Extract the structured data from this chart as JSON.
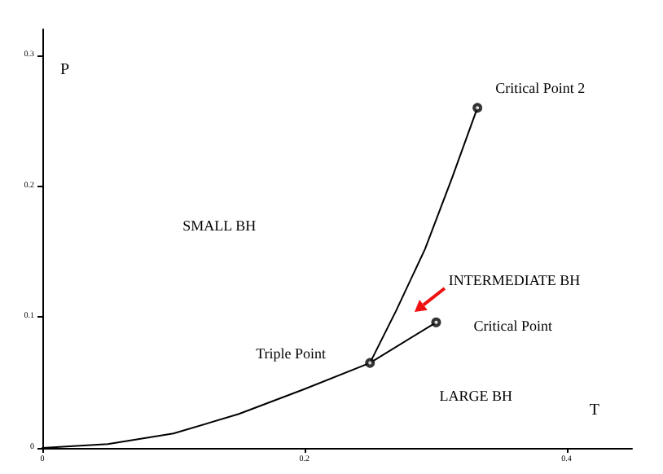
{
  "chart_data": {
    "type": "line",
    "xlabel": "T",
    "ylabel": "P",
    "series": [
      {
        "color": "#000000",
        "x": [
          0,
          0.05,
          0.1,
          0.15,
          0.2,
          0.25
        ],
        "values": [
          0,
          0.003,
          0.011,
          0.026,
          0.045,
          0.065
        ]
      },
      {
        "color": "#000000",
        "x": [
          0.25,
          0.27,
          0.292,
          0.3125,
          0.332
        ],
        "values": [
          0.065,
          0.105,
          0.152,
          0.206,
          0.26
        ]
      },
      {
        "color": "#000000",
        "x": [
          0.25,
          0.3005
        ],
        "values": [
          0.065,
          0.096
        ]
      },
      {
        "type": "scatter",
        "color": "#000000",
        "marker": "circle",
        "x": [
          0.25,
          0.3005,
          0.332
        ],
        "values": [
          0.065,
          0.096,
          0.26
        ]
      }
    ],
    "marker": "none",
    "line_style": "solid",
    "xlim": [
      0,
      0.45
    ],
    "xticks": [
      0,
      0.2,
      0.4
    ],
    "ylim": [
      0,
      0.32
    ],
    "yticks": [
      0,
      0.1,
      0.2,
      0.3
    ],
    "grid": false,
    "annotations": [
      {
        "text": "Critical Point 2",
        "x": 0.332,
        "y": 0.26
      },
      "Triple Point",
      {
        "text": "Critical Point",
        "x": 0.3005,
        "y": 0.096
      },
      "SMALL BH",
      "INTERMEDIATE BH",
      "LARGE BH"
    ]
  }
}
